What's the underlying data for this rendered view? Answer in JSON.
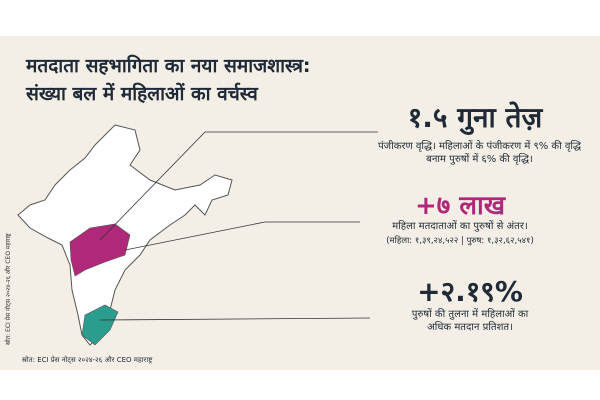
{
  "header": {
    "title_line1": "मतदाता सहभागिता का नया समाजशास्त्र:",
    "title_line2": "संख्या बल में महिलाओं का वर्चस्व"
  },
  "stats": [
    {
      "headline": "१.५ गुना तेज़",
      "text": "पंजीकरण वृद्धि। महिलाओं के पंजीकरण में ९% की वृद्धि बनाम पुरुषों में ६% की वृद्धि।"
    },
    {
      "headline": "+७ लाख",
      "text": "महिला मतदाताओं का पुरुषों से अंतर।",
      "detail": "(महिला: १,३९,२४,५२२ | पुरुष: १,३२,६२,५४१)"
    },
    {
      "headline": "+२.१९%",
      "text": "पुरुषों की तुलना में महिलाओं का अधिक मतदान प्रतिशत।"
    }
  ],
  "source": "स्रोत: ECI प्रेस नोट्स २०२४-२६ और CEO महाराष्ट्र"
}
